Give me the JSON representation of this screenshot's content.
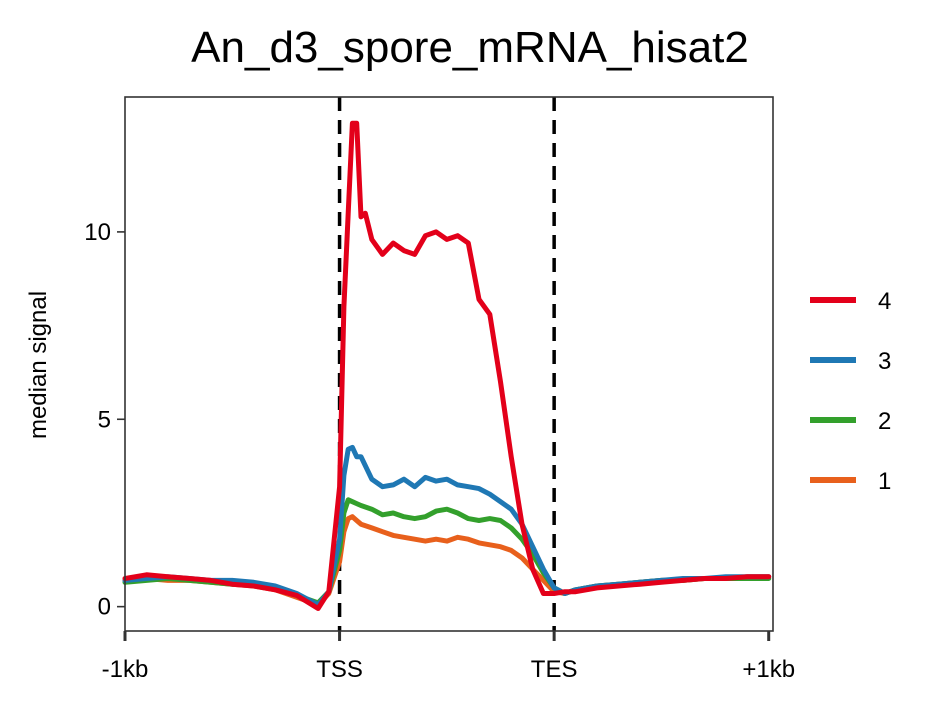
{
  "chart_data": {
    "type": "line",
    "title": "An_d3_spore_mRNA_hisat2",
    "xlabel": "",
    "ylabel": "median signal",
    "x_ticks": [
      {
        "pos": -1,
        "label": "-1kb"
      },
      {
        "pos": 0,
        "label": "TSS"
      },
      {
        "pos": 1,
        "label": "TES"
      },
      {
        "pos": 2,
        "label": "+1kb"
      }
    ],
    "xlim": [
      -1.0,
      2.02
    ],
    "ylim": [
      -0.65,
      13.6
    ],
    "y_ticks": [
      0,
      5,
      10
    ],
    "vlines": [
      0,
      1
    ],
    "grid": false,
    "legend_position": "right",
    "series": [
      {
        "name": "4",
        "color": "#e3001a",
        "x": [
          -1.0,
          -0.9,
          -0.8,
          -0.7,
          -0.6,
          -0.5,
          -0.4,
          -0.3,
          -0.2,
          -0.1,
          -0.05,
          0.0,
          0.02,
          0.04,
          0.06,
          0.08,
          0.1,
          0.12,
          0.15,
          0.2,
          0.25,
          0.3,
          0.35,
          0.4,
          0.45,
          0.5,
          0.55,
          0.6,
          0.65,
          0.7,
          0.75,
          0.8,
          0.85,
          0.9,
          0.95,
          1.0,
          1.05,
          1.1,
          1.2,
          1.3,
          1.4,
          1.5,
          1.6,
          1.7,
          1.8,
          1.9,
          2.0
        ],
        "y": [
          0.75,
          0.85,
          0.8,
          0.75,
          0.7,
          0.6,
          0.55,
          0.45,
          0.3,
          -0.05,
          0.4,
          3.2,
          8.0,
          10.5,
          12.9,
          12.9,
          10.4,
          10.5,
          9.8,
          9.4,
          9.7,
          9.5,
          9.4,
          9.9,
          10.0,
          9.8,
          9.9,
          9.7,
          8.2,
          7.8,
          6.0,
          4.0,
          2.2,
          1.0,
          0.35,
          0.35,
          0.4,
          0.4,
          0.5,
          0.55,
          0.6,
          0.65,
          0.7,
          0.75,
          0.75,
          0.8,
          0.8
        ]
      },
      {
        "name": "3",
        "color": "#1f78b4",
        "x": [
          -1.0,
          -0.9,
          -0.8,
          -0.7,
          -0.6,
          -0.5,
          -0.4,
          -0.3,
          -0.2,
          -0.1,
          -0.05,
          0.0,
          0.02,
          0.04,
          0.06,
          0.08,
          0.1,
          0.15,
          0.2,
          0.25,
          0.3,
          0.35,
          0.4,
          0.45,
          0.5,
          0.55,
          0.6,
          0.65,
          0.7,
          0.75,
          0.8,
          0.85,
          0.9,
          0.95,
          1.0,
          1.05,
          1.1,
          1.2,
          1.3,
          1.4,
          1.5,
          1.6,
          1.7,
          1.8,
          1.9,
          2.0
        ],
        "y": [
          0.7,
          0.75,
          0.8,
          0.75,
          0.7,
          0.7,
          0.65,
          0.55,
          0.35,
          0.05,
          0.4,
          1.8,
          3.5,
          4.2,
          4.25,
          4.0,
          4.0,
          3.4,
          3.2,
          3.25,
          3.4,
          3.2,
          3.45,
          3.35,
          3.4,
          3.25,
          3.2,
          3.15,
          3.0,
          2.8,
          2.6,
          2.2,
          1.6,
          1.0,
          0.5,
          0.35,
          0.45,
          0.55,
          0.6,
          0.65,
          0.7,
          0.75,
          0.75,
          0.8,
          0.8,
          0.8
        ]
      },
      {
        "name": "2",
        "color": "#33a02c",
        "x": [
          -1.0,
          -0.9,
          -0.8,
          -0.7,
          -0.6,
          -0.5,
          -0.4,
          -0.3,
          -0.2,
          -0.1,
          -0.05,
          0.0,
          0.02,
          0.04,
          0.06,
          0.08,
          0.1,
          0.15,
          0.2,
          0.25,
          0.3,
          0.35,
          0.4,
          0.45,
          0.5,
          0.55,
          0.6,
          0.65,
          0.7,
          0.75,
          0.8,
          0.85,
          0.9,
          0.95,
          1.0,
          1.05,
          1.1,
          1.2,
          1.3,
          1.4,
          1.5,
          1.6,
          1.7,
          1.8,
          1.9,
          2.0
        ],
        "y": [
          0.65,
          0.7,
          0.75,
          0.7,
          0.65,
          0.6,
          0.6,
          0.5,
          0.3,
          0.1,
          0.4,
          1.5,
          2.5,
          2.85,
          2.8,
          2.75,
          2.7,
          2.6,
          2.45,
          2.5,
          2.4,
          2.35,
          2.4,
          2.55,
          2.6,
          2.5,
          2.35,
          2.3,
          2.35,
          2.3,
          2.1,
          1.8,
          1.4,
          0.9,
          0.5,
          0.35,
          0.45,
          0.55,
          0.6,
          0.65,
          0.7,
          0.7,
          0.75,
          0.75,
          0.75,
          0.75
        ]
      },
      {
        "name": "1",
        "color": "#e8601c",
        "x": [
          -1.0,
          -0.9,
          -0.8,
          -0.7,
          -0.6,
          -0.5,
          -0.4,
          -0.3,
          -0.2,
          -0.1,
          -0.05,
          0.0,
          0.02,
          0.04,
          0.06,
          0.08,
          0.1,
          0.15,
          0.2,
          0.25,
          0.3,
          0.35,
          0.4,
          0.45,
          0.5,
          0.55,
          0.6,
          0.65,
          0.7,
          0.75,
          0.8,
          0.85,
          0.9,
          0.95,
          1.0,
          1.05,
          1.1,
          1.2,
          1.3,
          1.4,
          1.5,
          1.6,
          1.7,
          1.8,
          1.9,
          2.0
        ],
        "y": [
          0.7,
          0.75,
          0.7,
          0.7,
          0.65,
          0.6,
          0.55,
          0.45,
          0.25,
          0.05,
          0.35,
          1.2,
          2.0,
          2.35,
          2.4,
          2.3,
          2.2,
          2.1,
          2.0,
          1.9,
          1.85,
          1.8,
          1.75,
          1.8,
          1.75,
          1.85,
          1.8,
          1.7,
          1.65,
          1.6,
          1.5,
          1.3,
          1.0,
          0.7,
          0.4,
          0.35,
          0.45,
          0.55,
          0.6,
          0.65,
          0.7,
          0.7,
          0.75,
          0.75,
          0.8,
          0.8
        ]
      }
    ]
  }
}
